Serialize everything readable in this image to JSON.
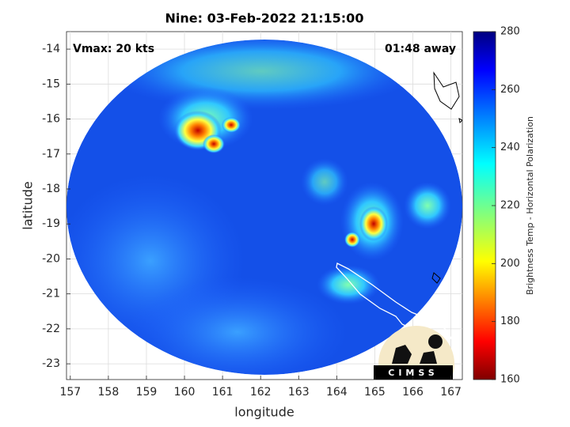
{
  "chart_data": {
    "type": "image",
    "title": "Nine: 03-Feb-2022 21:15:00",
    "annotations": [
      "Vmax: 20 kts",
      "01:48 away"
    ],
    "xlabel": "longitude",
    "ylabel": "latitude",
    "xlim": [
      156.9,
      167.3
    ],
    "ylim": [
      -13.5,
      -23.45
    ],
    "xticks": [
      157,
      158,
      159,
      160,
      161,
      162,
      163,
      164,
      165,
      166,
      167
    ],
    "yticks": [
      -14,
      -15,
      -16,
      -17,
      -18,
      -19,
      -20,
      -21,
      -22,
      -23
    ],
    "grid": true,
    "colorbar": {
      "label": "Brightness Temp - Horizontal Polarization",
      "lim": [
        160,
        280
      ],
      "ticks": [
        160,
        180,
        200,
        220,
        240,
        260,
        280
      ]
    },
    "logo_text": "CIMSS"
  }
}
